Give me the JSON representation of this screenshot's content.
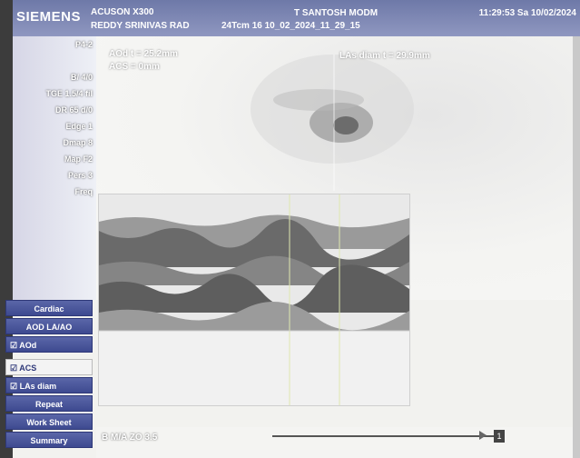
{
  "header": {
    "brand": "SIEMENS",
    "system": "ACUSON X300",
    "institution": "REDDY SRINIVAS RAD",
    "extra": "24Tcm  16  10_02_2024_11_29_15",
    "patient": "T SANTOSH MODM",
    "datetime": "11:29:53  Sa  10/02/2024"
  },
  "measurements": {
    "aod": "AOd t = 25.2mm",
    "acs": "ACS = 0mm",
    "la_diam": "LAs diam t = 29.9mm"
  },
  "params": [
    "P4-2",
    "",
    "B/ 4/0",
    "TGE 1.5/4 fil",
    "DR 65 d/0",
    "Edge 1",
    "Dmap 8",
    "Map F2",
    "Pers 3",
    "Freq"
  ],
  "menu": {
    "cardiac": "Cardiac",
    "aod_la": "AOD LA/AO",
    "aod": "AOd",
    "acs": "ACS",
    "la_diam": "LAs diam",
    "repeat": "Repeat",
    "worksheet": "Work Sheet",
    "summary": "Summary"
  },
  "mmode_label": "B  M/A  ZO  3.5",
  "colors": {
    "menu_blue": "#3e4a90",
    "header_blue": "#7a84b4"
  }
}
